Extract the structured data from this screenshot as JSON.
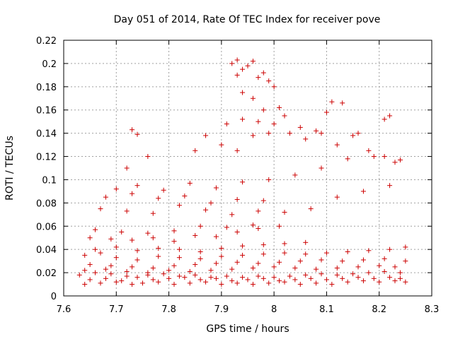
{
  "chart_data": {
    "type": "scatter",
    "title": "Day 051 of 2014, Rate Of TEC Index for receiver pove",
    "xlabel": "GPS time / hours",
    "ylabel": "ROTI / TECUs",
    "xlim": [
      7.6,
      8.3
    ],
    "ylim": [
      0,
      0.22
    ],
    "xticks": [
      "7.6",
      "7.7",
      "7.8",
      "7.9",
      "8",
      "8.1",
      "8.2",
      "8.3"
    ],
    "yticks": [
      "0",
      "0.02",
      "0.04",
      "0.06",
      "0.08",
      "0.1",
      "0.12",
      "0.14",
      "0.16",
      "0.18",
      "0.2",
      "0.22"
    ],
    "grid": true,
    "marker": "+",
    "color": "#cc0000",
    "series": [
      {
        "name": "ROTI",
        "x": [
          7.64,
          7.67,
          7.7,
          7.73,
          7.75,
          7.78,
          7.81,
          7.84,
          7.87,
          7.9,
          7.93,
          7.96,
          7.99,
          8.02,
          8.05,
          8.08,
          8.11,
          8.14,
          8.17,
          8.2,
          8.23,
          8.25,
          7.65,
          7.68,
          7.71,
          7.74,
          7.77,
          7.8,
          7.83,
          7.86,
          7.89,
          7.92,
          7.95,
          7.98,
          8.01,
          8.04,
          8.07,
          8.1,
          8.13,
          8.16,
          8.19,
          8.22,
          8.24,
          7.63,
          7.66,
          7.69,
          7.72,
          7.76,
          7.79,
          7.82,
          7.85,
          7.88,
          7.91,
          7.94,
          7.97,
          8.0,
          8.03,
          8.06,
          8.09,
          8.12,
          8.15,
          8.18,
          8.21,
          8.24,
          7.64,
          7.68,
          7.72,
          7.76,
          7.8,
          7.84,
          7.88,
          7.92,
          7.96,
          8.0,
          8.04,
          8.08,
          8.12,
          8.16,
          8.2,
          8.23,
          7.65,
          7.69,
          7.73,
          7.77,
          7.81,
          7.85,
          7.89,
          7.93,
          7.97,
          8.01,
          8.05,
          8.09,
          8.13,
          8.17,
          8.21,
          8.25,
          7.64,
          7.67,
          7.7,
          7.74,
          7.78,
          7.82,
          7.86,
          7.9,
          7.94,
          7.98,
          8.02,
          8.06,
          8.1,
          8.14,
          8.18,
          8.22,
          8.25,
          7.66,
          7.7,
          7.74,
          7.78,
          7.82,
          7.86,
          7.9,
          7.94,
          7.98,
          8.02,
          8.06,
          7.65,
          7.69,
          7.73,
          7.77,
          7.81,
          7.85,
          7.89,
          7.93,
          7.97,
          8.01,
          7.66,
          7.71,
          7.76,
          7.81,
          7.86,
          7.91,
          7.96,
          7.67,
          7.72,
          7.77,
          7.82,
          7.87,
          7.92,
          7.97,
          8.02,
          8.07,
          8.12,
          8.17,
          8.22,
          7.68,
          7.73,
          7.78,
          7.83,
          7.88,
          7.93,
          7.98,
          7.7,
          7.74,
          7.79,
          7.84,
          7.89,
          7.94,
          7.99,
          8.04,
          8.09,
          8.14,
          8.19,
          8.24,
          7.72,
          7.76,
          7.85,
          7.9,
          7.93,
          7.96,
          7.99,
          7.73,
          7.74,
          7.87,
          7.91,
          7.94,
          7.97,
          8.0,
          8.03,
          8.06,
          8.09,
          8.12,
          8.15,
          8.18,
          8.21,
          8.23,
          7.92,
          7.93,
          7.94,
          7.96,
          7.97,
          7.98,
          7.99,
          8.0,
          7.93,
          7.95,
          7.98,
          8.01,
          8.02,
          8.1,
          8.11,
          8.13,
          8.16,
          8.21,
          8.22,
          7.94,
          7.96,
          8.05,
          8.08
        ],
        "y": [
          0.01,
          0.011,
          0.012,
          0.01,
          0.011,
          0.012,
          0.01,
          0.011,
          0.012,
          0.01,
          0.011,
          0.01,
          0.011,
          0.012,
          0.01,
          0.011,
          0.01,
          0.012,
          0.013,
          0.012,
          0.013,
          0.012,
          0.014,
          0.015,
          0.013,
          0.016,
          0.014,
          0.015,
          0.016,
          0.014,
          0.015,
          0.013,
          0.014,
          0.015,
          0.013,
          0.014,
          0.015,
          0.014,
          0.015,
          0.016,
          0.015,
          0.016,
          0.015,
          0.018,
          0.02,
          0.019,
          0.017,
          0.018,
          0.019,
          0.017,
          0.018,
          0.016,
          0.017,
          0.016,
          0.017,
          0.016,
          0.017,
          0.018,
          0.019,
          0.018,
          0.019,
          0.02,
          0.021,
          0.02,
          0.022,
          0.023,
          0.021,
          0.02,
          0.022,
          0.021,
          0.022,
          0.023,
          0.024,
          0.025,
          0.024,
          0.023,
          0.024,
          0.025,
          0.026,
          0.025,
          0.027,
          0.026,
          0.025,
          0.024,
          0.026,
          0.027,
          0.028,
          0.029,
          0.028,
          0.029,
          0.03,
          0.031,
          0.03,
          0.031,
          0.032,
          0.03,
          0.035,
          0.037,
          0.033,
          0.031,
          0.034,
          0.033,
          0.032,
          0.034,
          0.035,
          0.036,
          0.037,
          0.036,
          0.037,
          0.038,
          0.039,
          0.04,
          0.042,
          0.04,
          0.042,
          0.039,
          0.041,
          0.04,
          0.038,
          0.041,
          0.043,
          0.044,
          0.045,
          0.046,
          0.05,
          0.049,
          0.048,
          0.05,
          0.047,
          0.052,
          0.051,
          0.055,
          0.058,
          0.06,
          0.057,
          0.055,
          0.054,
          0.056,
          0.06,
          0.059,
          0.061,
          0.075,
          0.073,
          0.071,
          0.078,
          0.074,
          0.07,
          0.073,
          0.072,
          0.075,
          0.085,
          0.09,
          0.095,
          0.085,
          0.088,
          0.084,
          0.086,
          0.08,
          0.083,
          0.082,
          0.092,
          0.095,
          0.091,
          0.097,
          0.093,
          0.098,
          0.1,
          0.104,
          0.11,
          0.118,
          0.12,
          0.117,
          0.11,
          0.12,
          0.125,
          0.13,
          0.125,
          0.138,
          0.14,
          0.143,
          0.139,
          0.138,
          0.148,
          0.152,
          0.15,
          0.148,
          0.14,
          0.135,
          0.14,
          0.13,
          0.138,
          0.125,
          0.12,
          0.115,
          0.2,
          0.203,
          0.195,
          0.202,
          0.188,
          0.192,
          0.185,
          0.18,
          0.19,
          0.198,
          0.16,
          0.162,
          0.155,
          0.158,
          0.167,
          0.166,
          0.14,
          0.152,
          0.155,
          0.175,
          0.17,
          0.145,
          0.142
        ]
      }
    ]
  }
}
